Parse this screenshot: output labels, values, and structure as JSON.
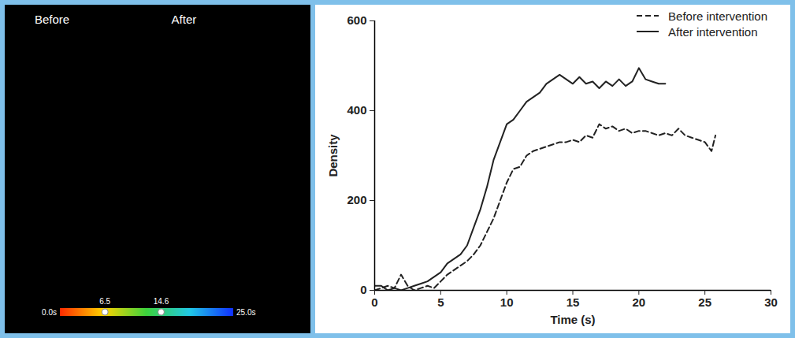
{
  "chart_data": {
    "type": "line",
    "x_label": "Time (s)",
    "y_label": "Density",
    "xlim": [
      0,
      30
    ],
    "xticks": [
      0,
      5,
      10,
      15,
      20,
      25,
      30
    ],
    "ylim": [
      0,
      600
    ],
    "yticks": [
      0,
      200,
      400,
      600
    ],
    "legend": "top-right",
    "series": [
      {
        "name": "Before intervention",
        "color": "#222222",
        "line_style": "dashed",
        "x": [
          0,
          0.5,
          1,
          1.5,
          2,
          2.5,
          3,
          3.5,
          4,
          4.5,
          5,
          5.5,
          6,
          6.5,
          7,
          7.5,
          8,
          8.5,
          9,
          9.5,
          10,
          10.5,
          11,
          11.5,
          12,
          12.5,
          13,
          13.5,
          14,
          14.5,
          15,
          15.5,
          16,
          16.5,
          17,
          17.5,
          18,
          18.5,
          19,
          19.5,
          20,
          20.5,
          21,
          21.5,
          22,
          22.5,
          23,
          23.5,
          24,
          24.5,
          25,
          25.5,
          25.8
        ],
        "values": [
          0,
          5,
          10,
          5,
          35,
          10,
          0,
          5,
          10,
          5,
          20,
          35,
          45,
          55,
          65,
          80,
          100,
          130,
          160,
          200,
          240,
          270,
          275,
          300,
          310,
          315,
          320,
          325,
          330,
          330,
          335,
          330,
          345,
          340,
          370,
          360,
          365,
          355,
          360,
          350,
          355,
          355,
          350,
          345,
          350,
          345,
          360,
          345,
          340,
          335,
          330,
          310,
          345
        ]
      },
      {
        "name": "After intervention",
        "color": "#222222",
        "line_style": "solid",
        "x": [
          0,
          0.5,
          1,
          1.5,
          2,
          2.5,
          3,
          3.5,
          4,
          4.5,
          5,
          5.5,
          6,
          6.5,
          7,
          7.5,
          8,
          8.5,
          9,
          9.5,
          10,
          10.5,
          11,
          11.5,
          12,
          12.5,
          13,
          13.5,
          14,
          14.5,
          15,
          15.5,
          16,
          16.5,
          17,
          17.5,
          18,
          18.5,
          19,
          19.5,
          20,
          20.5,
          21,
          21.5,
          22
        ],
        "values": [
          10,
          10,
          0,
          5,
          0,
          5,
          10,
          15,
          20,
          30,
          40,
          60,
          70,
          80,
          100,
          140,
          180,
          230,
          290,
          330,
          370,
          380,
          400,
          420,
          430,
          440,
          460,
          470,
          480,
          470,
          460,
          475,
          460,
          465,
          450,
          465,
          455,
          470,
          455,
          465,
          495,
          470,
          465,
          460,
          460
        ]
      }
    ]
  },
  "image_panel": {
    "titles": [
      "Before",
      "After"
    ],
    "colorbar": {
      "range": [
        0,
        25
      ],
      "colors": [
        "#ff2a00",
        "#ffd200",
        "#3cd23c",
        "#20c8e6",
        "#1030ff"
      ],
      "ticks": [
        {
          "value": 0,
          "label": "0.0s"
        },
        {
          "value": 6.5,
          "label": "6.5"
        },
        {
          "value": 14.6,
          "label": "14.6"
        },
        {
          "value": 25,
          "label": "25.0s"
        }
      ]
    }
  }
}
